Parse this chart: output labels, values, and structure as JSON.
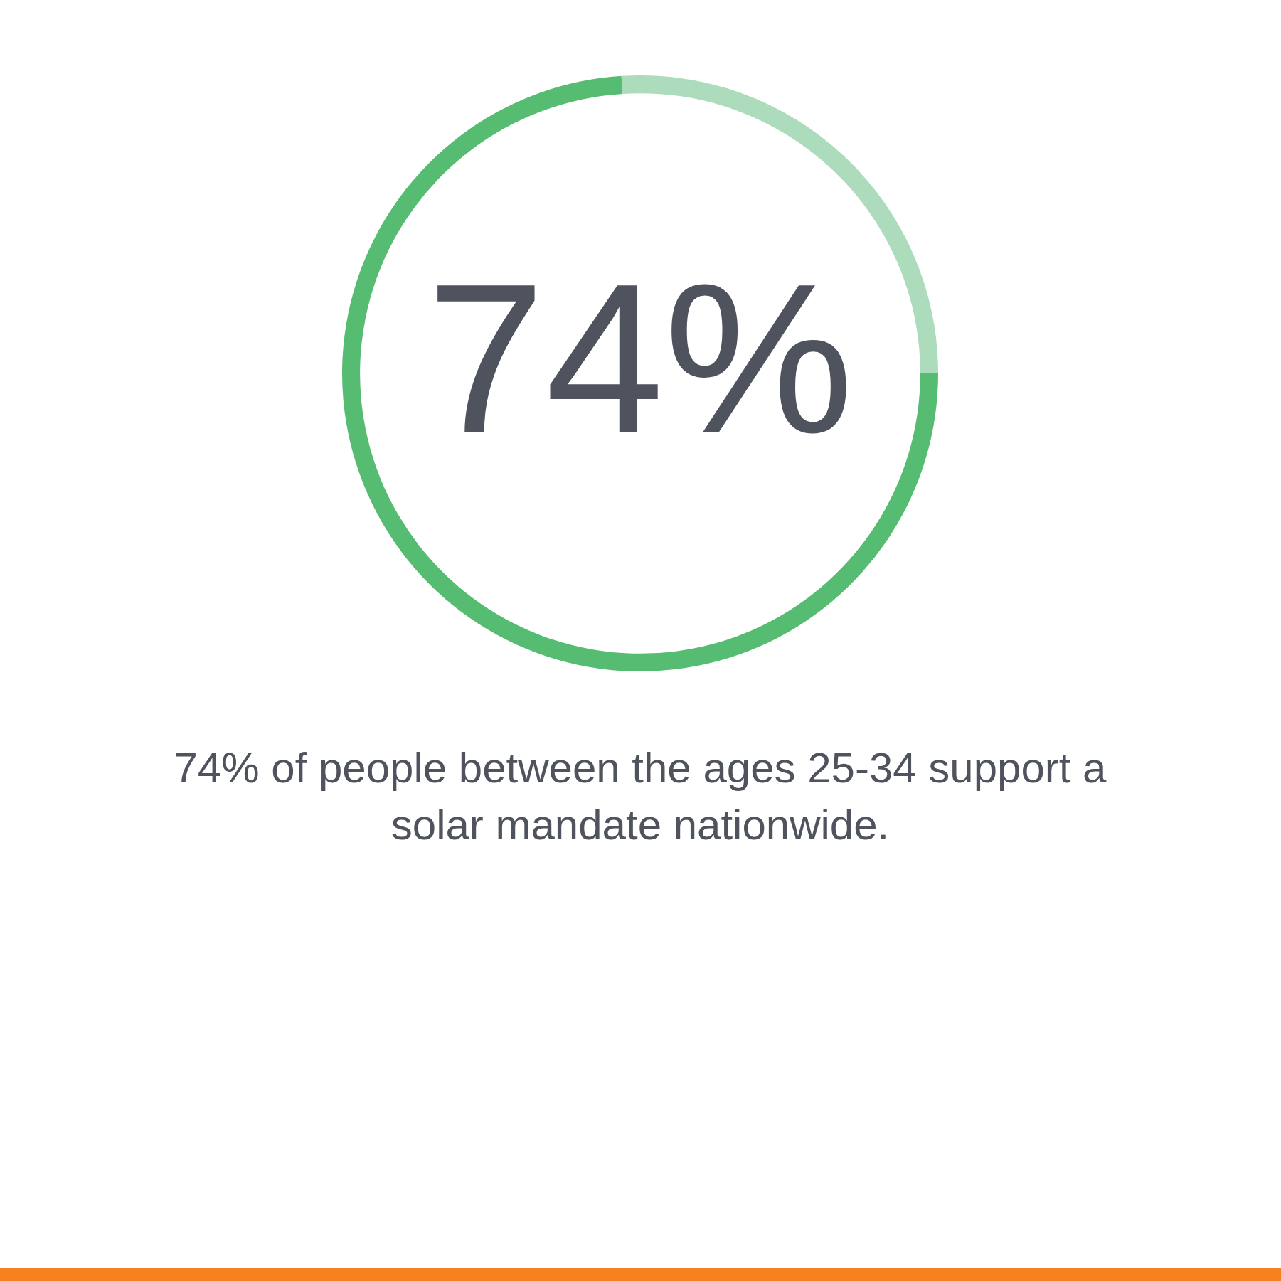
{
  "chart_data": {
    "type": "donut",
    "categories": [
      null,
      null
    ],
    "values": [
      74,
      26
    ],
    "colors": [
      "#56bc72",
      "#acdcbc"
    ],
    "value_labels": [
      "74%",
      null
    ],
    "legend": false,
    "annotations": [
      "74% of people between the ages 25-34 support a solar mandate nationwide."
    ]
  }
}
